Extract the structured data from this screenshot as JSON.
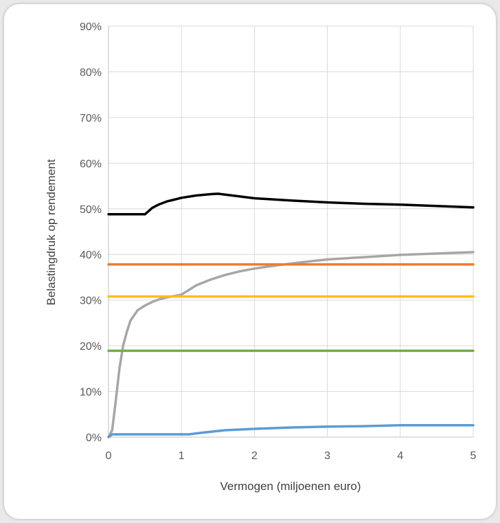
{
  "chart_data": {
    "type": "line",
    "xlabel": "Vermogen (miljoenen euro)",
    "ylabel": "Belastingdruk op rendement",
    "xlim": [
      0,
      5
    ],
    "ylim": [
      0,
      90
    ],
    "x_ticks": [
      "0",
      "1",
      "2",
      "3",
      "4",
      "5"
    ],
    "y_ticks": [
      "0%",
      "10%",
      "20%",
      "30%",
      "40%",
      "50%",
      "60%",
      "70%",
      "80%",
      "90%"
    ],
    "grid": true,
    "legend": "none",
    "series": [
      {
        "color": "#000000",
        "points": [
          [
            0,
            48.8
          ],
          [
            0.5,
            48.8
          ],
          [
            0.6,
            50.2
          ],
          [
            0.7,
            51.0
          ],
          [
            0.8,
            51.6
          ],
          [
            0.9,
            52.0
          ],
          [
            1.0,
            52.4
          ],
          [
            1.2,
            52.9
          ],
          [
            1.4,
            53.2
          ],
          [
            1.5,
            53.3
          ],
          [
            1.7,
            52.9
          ],
          [
            2.0,
            52.3
          ],
          [
            2.5,
            51.8
          ],
          [
            3.0,
            51.4
          ],
          [
            3.5,
            51.1
          ],
          [
            4.0,
            50.9
          ],
          [
            4.5,
            50.6
          ],
          [
            5.0,
            50.3
          ]
        ]
      },
      {
        "color": "#a6a6a6",
        "points": [
          [
            0,
            0
          ],
          [
            0.05,
            1.5
          ],
          [
            0.1,
            8
          ],
          [
            0.15,
            15
          ],
          [
            0.2,
            20
          ],
          [
            0.25,
            23
          ],
          [
            0.3,
            25.5
          ],
          [
            0.4,
            27.8
          ],
          [
            0.5,
            28.8
          ],
          [
            0.6,
            29.6
          ],
          [
            0.7,
            30.2
          ],
          [
            0.8,
            30.6
          ],
          [
            0.9,
            30.9
          ],
          [
            1.0,
            31.2
          ],
          [
            1.2,
            33.2
          ],
          [
            1.4,
            34.5
          ],
          [
            1.6,
            35.5
          ],
          [
            1.8,
            36.3
          ],
          [
            2.0,
            36.9
          ],
          [
            2.3,
            37.6
          ],
          [
            2.6,
            38.2
          ],
          [
            3.0,
            38.9
          ],
          [
            3.5,
            39.4
          ],
          [
            4.0,
            39.9
          ],
          [
            4.5,
            40.2
          ],
          [
            5.0,
            40.5
          ]
        ]
      },
      {
        "color": "#ed7d31",
        "points": [
          [
            0,
            37.8
          ],
          [
            5,
            37.8
          ]
        ]
      },
      {
        "color": "#ffc000",
        "points": [
          [
            0,
            30.8
          ],
          [
            5,
            30.8
          ]
        ]
      },
      {
        "color": "#70ad47",
        "points": [
          [
            0,
            18.9
          ],
          [
            5,
            18.9
          ]
        ]
      },
      {
        "color": "#5b9bd5",
        "points": [
          [
            0,
            0
          ],
          [
            0.05,
            0.6
          ],
          [
            1.1,
            0.6
          ],
          [
            1.3,
            1.0
          ],
          [
            1.6,
            1.5
          ],
          [
            2.0,
            1.8
          ],
          [
            2.5,
            2.1
          ],
          [
            3.0,
            2.3
          ],
          [
            3.5,
            2.4
          ],
          [
            4.0,
            2.6
          ],
          [
            5.0,
            2.6
          ]
        ]
      }
    ]
  }
}
